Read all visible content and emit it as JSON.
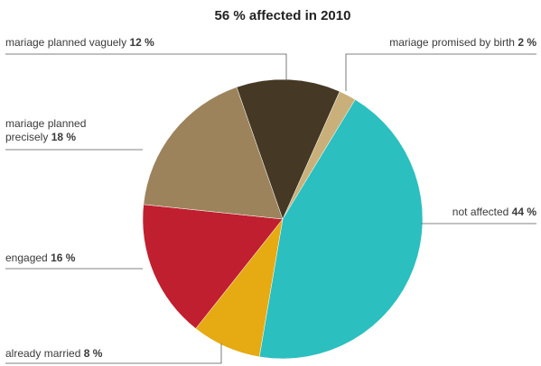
{
  "chart_data": {
    "type": "pie",
    "title": "56 % affected in 2010",
    "slices": [
      {
        "label": "mariage promised by birth",
        "value": 2,
        "value_label": "2 %",
        "color": "#c9b07a"
      },
      {
        "label": "not affected",
        "value": 44,
        "value_label": "44 %",
        "color": "#2bbfbf"
      },
      {
        "label": "already married",
        "value": 8,
        "value_label": "8 %",
        "color": "#e6aa12"
      },
      {
        "label": "engaged",
        "value": 16,
        "value_label": "16 %",
        "color": "#c01f2f"
      },
      {
        "label": "mariage planned precisely",
        "label_lines": [
          "mariage planned",
          "precisely"
        ],
        "value": 18,
        "value_label": "18 %",
        "color": "#9c835c"
      },
      {
        "label": "mariage planned vaguely",
        "value": 12,
        "value_label": "12 %",
        "color": "#453824"
      }
    ]
  }
}
